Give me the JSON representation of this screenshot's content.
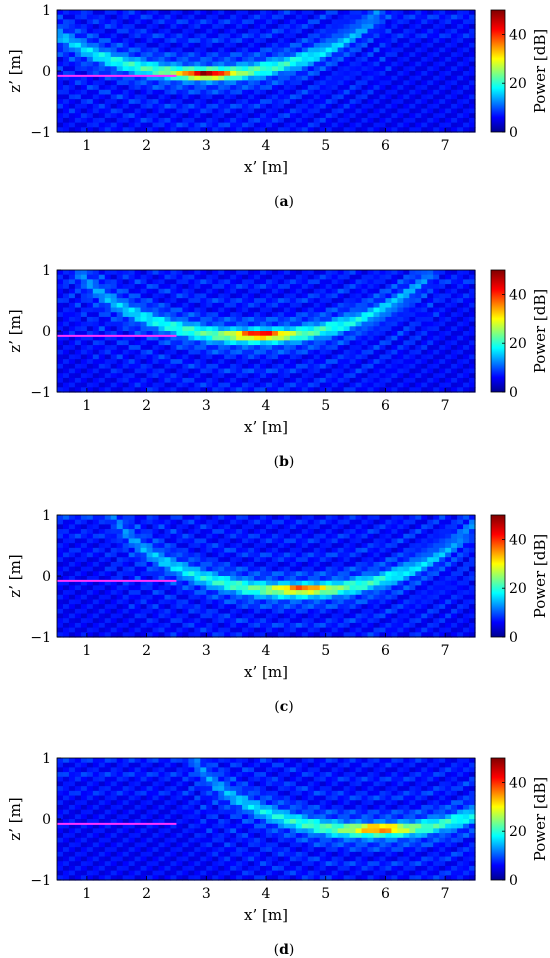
{
  "figure": {
    "panels": [
      {
        "caption_pre": "(",
        "caption_letter": "a",
        "caption_post": ")"
      },
      {
        "caption_pre": "(",
        "caption_letter": "b",
        "caption_post": ")"
      },
      {
        "caption_pre": "(",
        "caption_letter": "c",
        "caption_post": ")"
      },
      {
        "caption_pre": "(",
        "caption_letter": "d",
        "caption_post": ")"
      }
    ]
  },
  "chart_data": [
    {
      "type": "heatmap",
      "xlabel": "x’ [m]",
      "ylabel": "z’ [m]",
      "xlim": [
        0.5,
        7.5
      ],
      "ylim": [
        -1,
        1
      ],
      "xticks": [
        1,
        2,
        3,
        4,
        5,
        6,
        7
      ],
      "yticks": [
        -1,
        0,
        1
      ],
      "colorbar": {
        "label": "Power [dB]",
        "range": [
          0,
          50
        ],
        "ticks": [
          0,
          20,
          40
        ],
        "colormap": "jet"
      },
      "peak": {
        "x": 3.0,
        "z": -0.05,
        "power_db": 45
      },
      "arc": {
        "vertex_x": 3.0,
        "vertex_z": -0.05
      },
      "marker_line": {
        "x": [
          0.5,
          2.5
        ],
        "z": [
          -0.08,
          -0.08
        ],
        "color": "#ff33ff"
      }
    },
    {
      "type": "heatmap",
      "xlabel": "x’ [m]",
      "ylabel": "z’ [m]",
      "xlim": [
        0.5,
        7.5
      ],
      "ylim": [
        -1,
        1
      ],
      "xticks": [
        1,
        2,
        3,
        4,
        5,
        6,
        7
      ],
      "yticks": [
        -1,
        0,
        1
      ],
      "colorbar": {
        "label": "Power [dB]",
        "range": [
          0,
          50
        ],
        "ticks": [
          0,
          20,
          40
        ],
        "colormap": "jet"
      },
      "peak": {
        "x": 3.9,
        "z": -0.05,
        "power_db": 44
      },
      "arc": {
        "vertex_x": 3.8,
        "vertex_z": -0.1
      },
      "marker_line": {
        "x": [
          0.5,
          2.5
        ],
        "z": [
          -0.08,
          -0.08
        ],
        "color": "#ff33ff"
      }
    },
    {
      "type": "heatmap",
      "xlabel": "x’ [m]",
      "ylabel": "z’ [m]",
      "xlim": [
        0.5,
        7.5
      ],
      "ylim": [
        -1,
        1
      ],
      "xticks": [
        1,
        2,
        3,
        4,
        5,
        6,
        7
      ],
      "yticks": [
        -1,
        0,
        1
      ],
      "colorbar": {
        "label": "Power [dB]",
        "range": [
          0,
          50
        ],
        "ticks": [
          0,
          20,
          40
        ],
        "colormap": "jet"
      },
      "peak": {
        "x": 4.6,
        "z": -0.2,
        "power_db": 38
      },
      "arc": {
        "vertex_x": 4.5,
        "vertex_z": -0.25
      },
      "marker_line": {
        "x": [
          0.5,
          2.5
        ],
        "z": [
          -0.08,
          -0.08
        ],
        "color": "#ff33ff"
      }
    },
    {
      "type": "heatmap",
      "xlabel": "x’ [m]",
      "ylabel": "z’ [m]",
      "xlim": [
        0.5,
        7.5
      ],
      "ylim": [
        -1,
        1
      ],
      "xticks": [
        1,
        2,
        3,
        4,
        5,
        6,
        7
      ],
      "yticks": [
        -1,
        0,
        1
      ],
      "colorbar": {
        "label": "Power [dB]",
        "range": [
          0,
          50
        ],
        "ticks": [
          0,
          20,
          40
        ],
        "colormap": "jet"
      },
      "peak": {
        "x": 5.9,
        "z": -0.15,
        "power_db": 40
      },
      "arc": {
        "vertex_x": 5.8,
        "vertex_z": -0.2
      },
      "marker_line": {
        "x": [
          0.5,
          2.5
        ],
        "z": [
          -0.08,
          -0.08
        ],
        "color": "#ff33ff"
      }
    }
  ]
}
